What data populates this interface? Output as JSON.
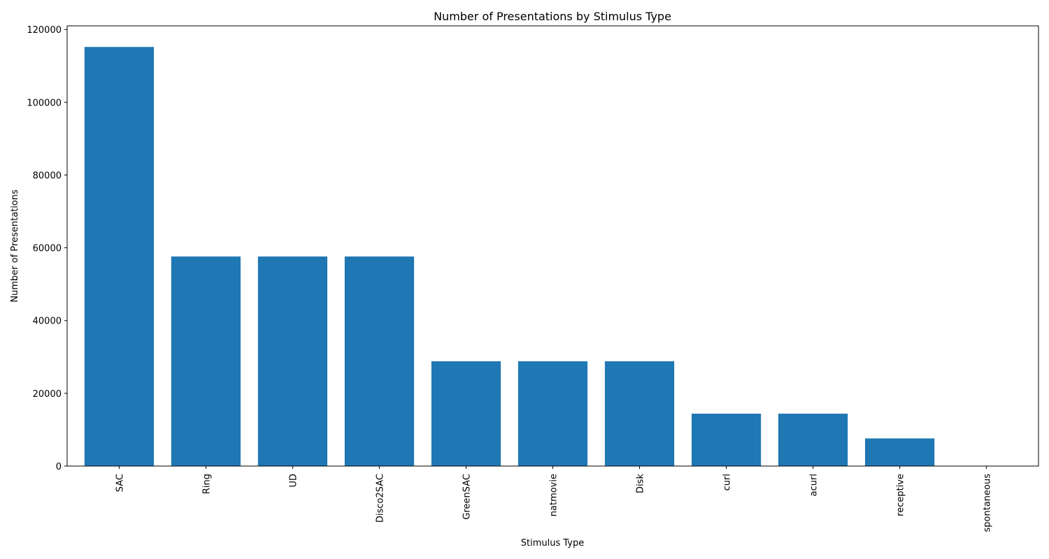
{
  "chart_data": {
    "type": "bar",
    "title": "Number of Presentations by Stimulus Type",
    "xlabel": "Stimulus Type",
    "ylabel": "Number of Presentations",
    "categories": [
      "SAC",
      "Ring",
      "UD",
      "Disco2SAC",
      "GreenSAC",
      "natmovie",
      "Disk",
      "curl",
      "acurl",
      "receptive",
      "spontaneous"
    ],
    "values": [
      115200,
      57600,
      57600,
      57600,
      28800,
      28800,
      28800,
      14400,
      14400,
      7600,
      0
    ],
    "ylim": [
      0,
      121000
    ],
    "yticks": [
      0,
      20000,
      40000,
      60000,
      80000,
      100000,
      120000
    ],
    "ytick_labels": [
      "0",
      "20000",
      "40000",
      "60000",
      "80000",
      "100000",
      "120000"
    ],
    "grid": false,
    "bar_color": "#1f77b4"
  }
}
